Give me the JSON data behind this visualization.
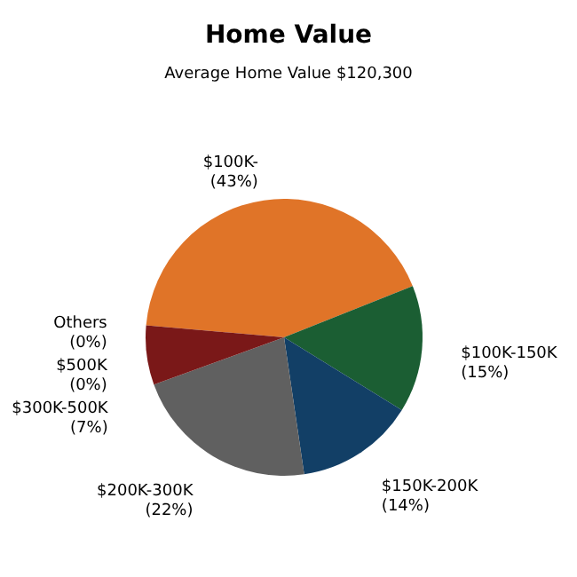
{
  "chart_data": {
    "type": "pie",
    "title": "Home Value",
    "subtitle": "Average Home Value  $120,300",
    "categories": [
      "$100K-",
      "$100K-150K",
      "$150K-200K",
      "$200K-300K",
      "$300K-500K",
      "$500K",
      "Others"
    ],
    "values": [
      43,
      15,
      14,
      22,
      7,
      0,
      0
    ],
    "value_labels": [
      "(43%)",
      "(15%)",
      "(14%)",
      "(22%)",
      "(7%)",
      "(0%)",
      "(0%)"
    ],
    "colors": [
      "#e07428",
      "#1b5e33",
      "#123f66",
      "#606060",
      "#7a1818",
      "#b0b0b0",
      "#d0d0d0"
    ],
    "legend": false
  }
}
